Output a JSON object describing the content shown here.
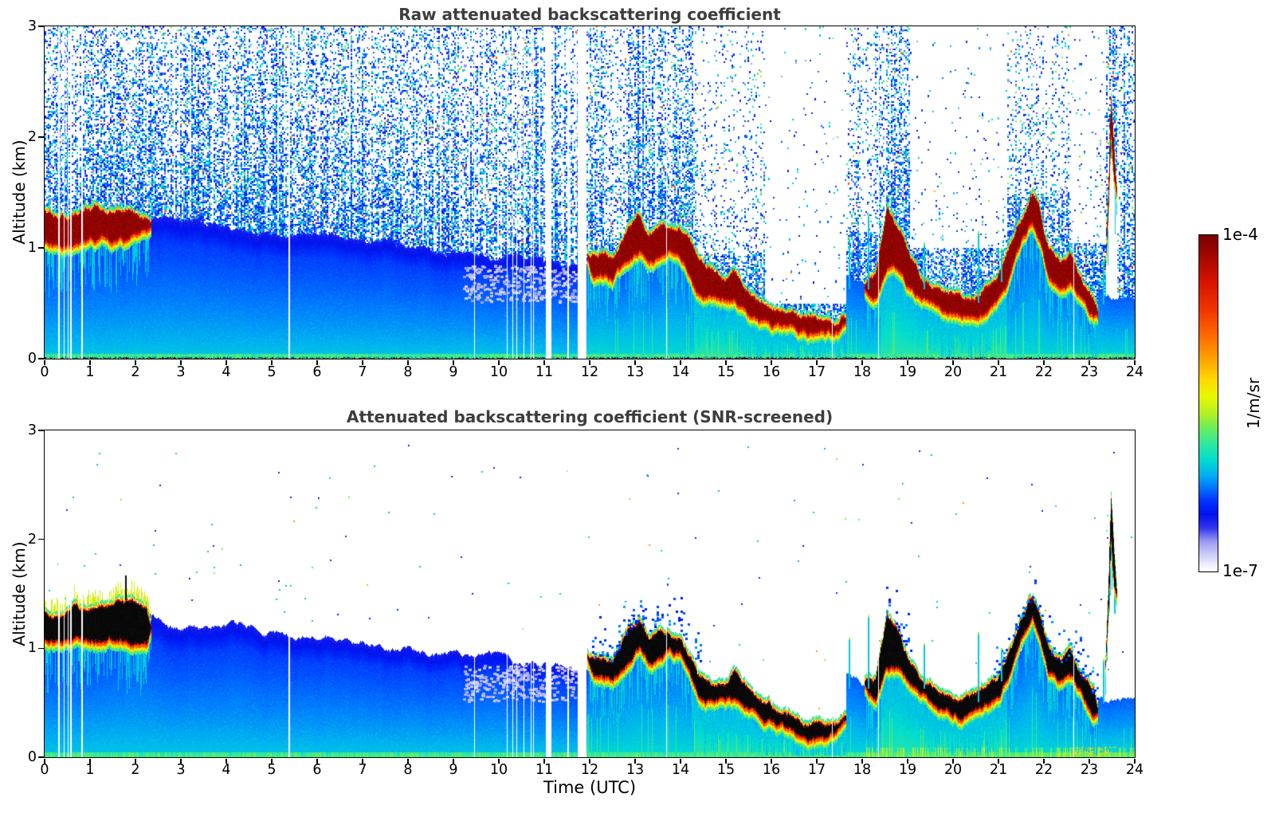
{
  "figure": {
    "background": "#ffffff",
    "title_color": "#3d3d3d",
    "xlabel": "Time (UTC)",
    "ylabel": "Altitude (km)",
    "colorbar": {
      "top_label": "1e-4",
      "bottom_label": "1e-7",
      "unit": "1/m/sr"
    }
  },
  "chart_data": {
    "type": "heatmap",
    "panels": [
      {
        "title": "Raw attenuated backscattering coefficient",
        "noise_screened": false,
        "cloud_core_color": "#7a0000"
      },
      {
        "title": "Attenuated backscattering coefficient (SNR-screened)",
        "noise_screened": true,
        "cloud_core_color": "#000000"
      }
    ],
    "x_range_hours": [
      0,
      24
    ],
    "y_range_km": [
      0,
      3
    ],
    "x_ticks": [
      0,
      1,
      2,
      3,
      4,
      5,
      6,
      7,
      8,
      9,
      10,
      11,
      12,
      13,
      14,
      15,
      16,
      17,
      18,
      19,
      20,
      21,
      22,
      23,
      24
    ],
    "y_ticks": [
      0,
      1,
      2,
      3
    ],
    "xlabel": "Time (UTC)",
    "ylabel": "Altitude (km)",
    "colorbar": {
      "vmin": 1e-07,
      "vmax": 0.0001,
      "scale": "log",
      "unit": "1/m/sr",
      "tick_labels": [
        "1e-4",
        "1e-7"
      ],
      "colormap_stops": [
        [
          0.0,
          "#ffffff"
        ],
        [
          0.02,
          "#eeeefe"
        ],
        [
          0.05,
          "#ccccfa"
        ],
        [
          0.09,
          "#9999f4"
        ],
        [
          0.13,
          "#3333ee"
        ],
        [
          0.17,
          "#0011ee"
        ],
        [
          0.21,
          "#0033ff"
        ],
        [
          0.25,
          "#0077ff"
        ],
        [
          0.29,
          "#00b4f0"
        ],
        [
          0.33,
          "#00dcd0"
        ],
        [
          0.38,
          "#30e8a0"
        ],
        [
          0.43,
          "#70ee55"
        ],
        [
          0.47,
          "#b4f024"
        ],
        [
          0.52,
          "#e8f800"
        ],
        [
          0.57,
          "#ffd800"
        ],
        [
          0.63,
          "#ffa400"
        ],
        [
          0.7,
          "#ff6a00"
        ],
        [
          0.78,
          "#f03300"
        ],
        [
          0.86,
          "#d81400"
        ],
        [
          0.93,
          "#a80700"
        ],
        [
          1.0,
          "#780000"
        ]
      ]
    },
    "scene": {
      "boundary_layer_top_km": {
        "hours": [
          0,
          1,
          2,
          2.5,
          3,
          4,
          5,
          6,
          7,
          8,
          9,
          10,
          11,
          11.95
        ],
        "values": [
          1.22,
          1.25,
          1.3,
          1.28,
          1.22,
          1.18,
          1.14,
          1.1,
          1.06,
          1.0,
          0.94,
          0.9,
          0.87,
          0.85
        ]
      },
      "cloud_segments": [
        {
          "name": "stratus deck 00:00-02:20",
          "elevated": true,
          "hours": [
            0,
            0.4,
            0.9,
            1.4,
            1.9,
            2.15,
            2.35
          ],
          "base_km": [
            1.08,
            1.05,
            1.06,
            1.1,
            1.12,
            1.14,
            1.18
          ],
          "top_km": [
            1.33,
            1.3,
            1.32,
            1.35,
            1.35,
            1.33,
            1.3
          ]
        },
        {
          "name": "lowering cloud deck 11:55-17:40",
          "elevated": false,
          "hours": [
            11.95,
            12.1,
            12.25,
            12.5,
            12.9,
            13.1,
            13.3,
            13.55,
            13.75,
            14.0,
            14.2,
            14.4,
            14.7,
            15.0,
            15.2,
            15.4,
            15.7,
            16.0,
            16.3,
            16.6,
            17.0,
            17.4,
            17.65
          ],
          "base_km": [
            0.85,
            0.75,
            0.78,
            0.74,
            0.9,
            1.0,
            0.86,
            0.95,
            1.0,
            0.95,
            0.8,
            0.62,
            0.55,
            0.52,
            0.55,
            0.45,
            0.38,
            0.33,
            0.3,
            0.27,
            0.22,
            0.22,
            0.28
          ],
          "top_km": [
            0.98,
            0.9,
            0.92,
            0.86,
            1.15,
            1.25,
            1.1,
            1.25,
            1.2,
            1.15,
            1.0,
            0.82,
            0.72,
            0.68,
            0.78,
            0.62,
            0.5,
            0.45,
            0.4,
            0.37,
            0.32,
            0.3,
            0.42
          ]
        },
        {
          "name": "broken low cloud 18:00-23:10",
          "elevated": false,
          "hours": [
            18.05,
            18.3,
            18.55,
            18.8,
            19.0,
            19.3,
            19.6,
            19.9,
            20.2,
            20.5,
            20.8,
            21.0,
            21.2,
            21.5,
            21.75,
            21.9,
            22.1,
            22.35,
            22.6,
            22.8,
            23.0,
            23.2
          ],
          "base_km": [
            0.62,
            0.55,
            0.85,
            0.8,
            0.68,
            0.55,
            0.5,
            0.45,
            0.42,
            0.45,
            0.5,
            0.55,
            0.7,
            1.0,
            1.25,
            1.1,
            0.75,
            0.7,
            0.73,
            0.6,
            0.45,
            0.35
          ],
          "top_km": [
            0.75,
            0.7,
            1.3,
            1.15,
            0.95,
            0.75,
            0.65,
            0.6,
            0.58,
            0.6,
            0.68,
            0.75,
            0.95,
            1.25,
            1.45,
            1.3,
            0.95,
            0.85,
            0.9,
            0.75,
            0.6,
            0.5
          ]
        },
        {
          "name": "rising plume 23:20-23:40",
          "elevated": true,
          "hours": [
            23.35,
            23.42,
            23.48,
            23.55,
            23.62
          ],
          "base_km": [
            0.65,
            1.25,
            2.05,
            1.55,
            1.3
          ],
          "top_km": [
            0.9,
            1.55,
            2.4,
            1.95,
            1.6
          ]
        }
      ],
      "data_gaps_hours": [
        [
          0.3,
          0.035
        ],
        [
          0.42,
          0.025
        ],
        [
          0.5,
          0.03
        ],
        [
          0.57,
          0.02
        ],
        [
          0.8,
          0.05
        ],
        [
          5.37,
          0.03
        ],
        [
          9.45,
          0.025
        ],
        [
          10.17,
          0.03
        ],
        [
          10.3,
          0.02
        ],
        [
          10.38,
          0.02
        ],
        [
          10.55,
          0.015
        ],
        [
          10.7,
          0.02
        ],
        [
          10.76,
          0.02
        ],
        [
          11.03,
          0.13
        ],
        [
          11.5,
          0.04
        ],
        [
          11.73,
          0.2
        ],
        [
          13.68,
          0.03
        ],
        [
          17.33,
          0.025
        ],
        [
          18.35,
          0.025
        ],
        [
          22.65,
          0.02
        ]
      ],
      "attenuation_zones": [
        [
          12.35,
          12.85,
          1.05,
          0.45
        ],
        [
          14.35,
          15.85,
          0.95,
          0.3
        ],
        [
          15.85,
          17.65,
          0.5,
          0.05
        ],
        [
          17.65,
          18.35,
          1.15,
          0.5
        ],
        [
          19.05,
          21.2,
          1.0,
          0.07
        ],
        [
          21.2,
          22.55,
          1.5,
          0.45
        ],
        [
          22.55,
          23.35,
          1.05,
          0.12
        ]
      ],
      "cyan_spikes": [
        [
          17.7,
          1.1
        ],
        [
          18.12,
          1.3
        ],
        [
          19.35,
          1.05
        ],
        [
          20.55,
          1.15
        ],
        [
          21.05,
          1.0
        ],
        [
          23.3,
          0.9
        ]
      ],
      "lavender_patch_zone": {
        "hours": [
          9.2,
          11.7
        ],
        "alt_km": [
          0.52,
          0.85
        ]
      }
    }
  }
}
